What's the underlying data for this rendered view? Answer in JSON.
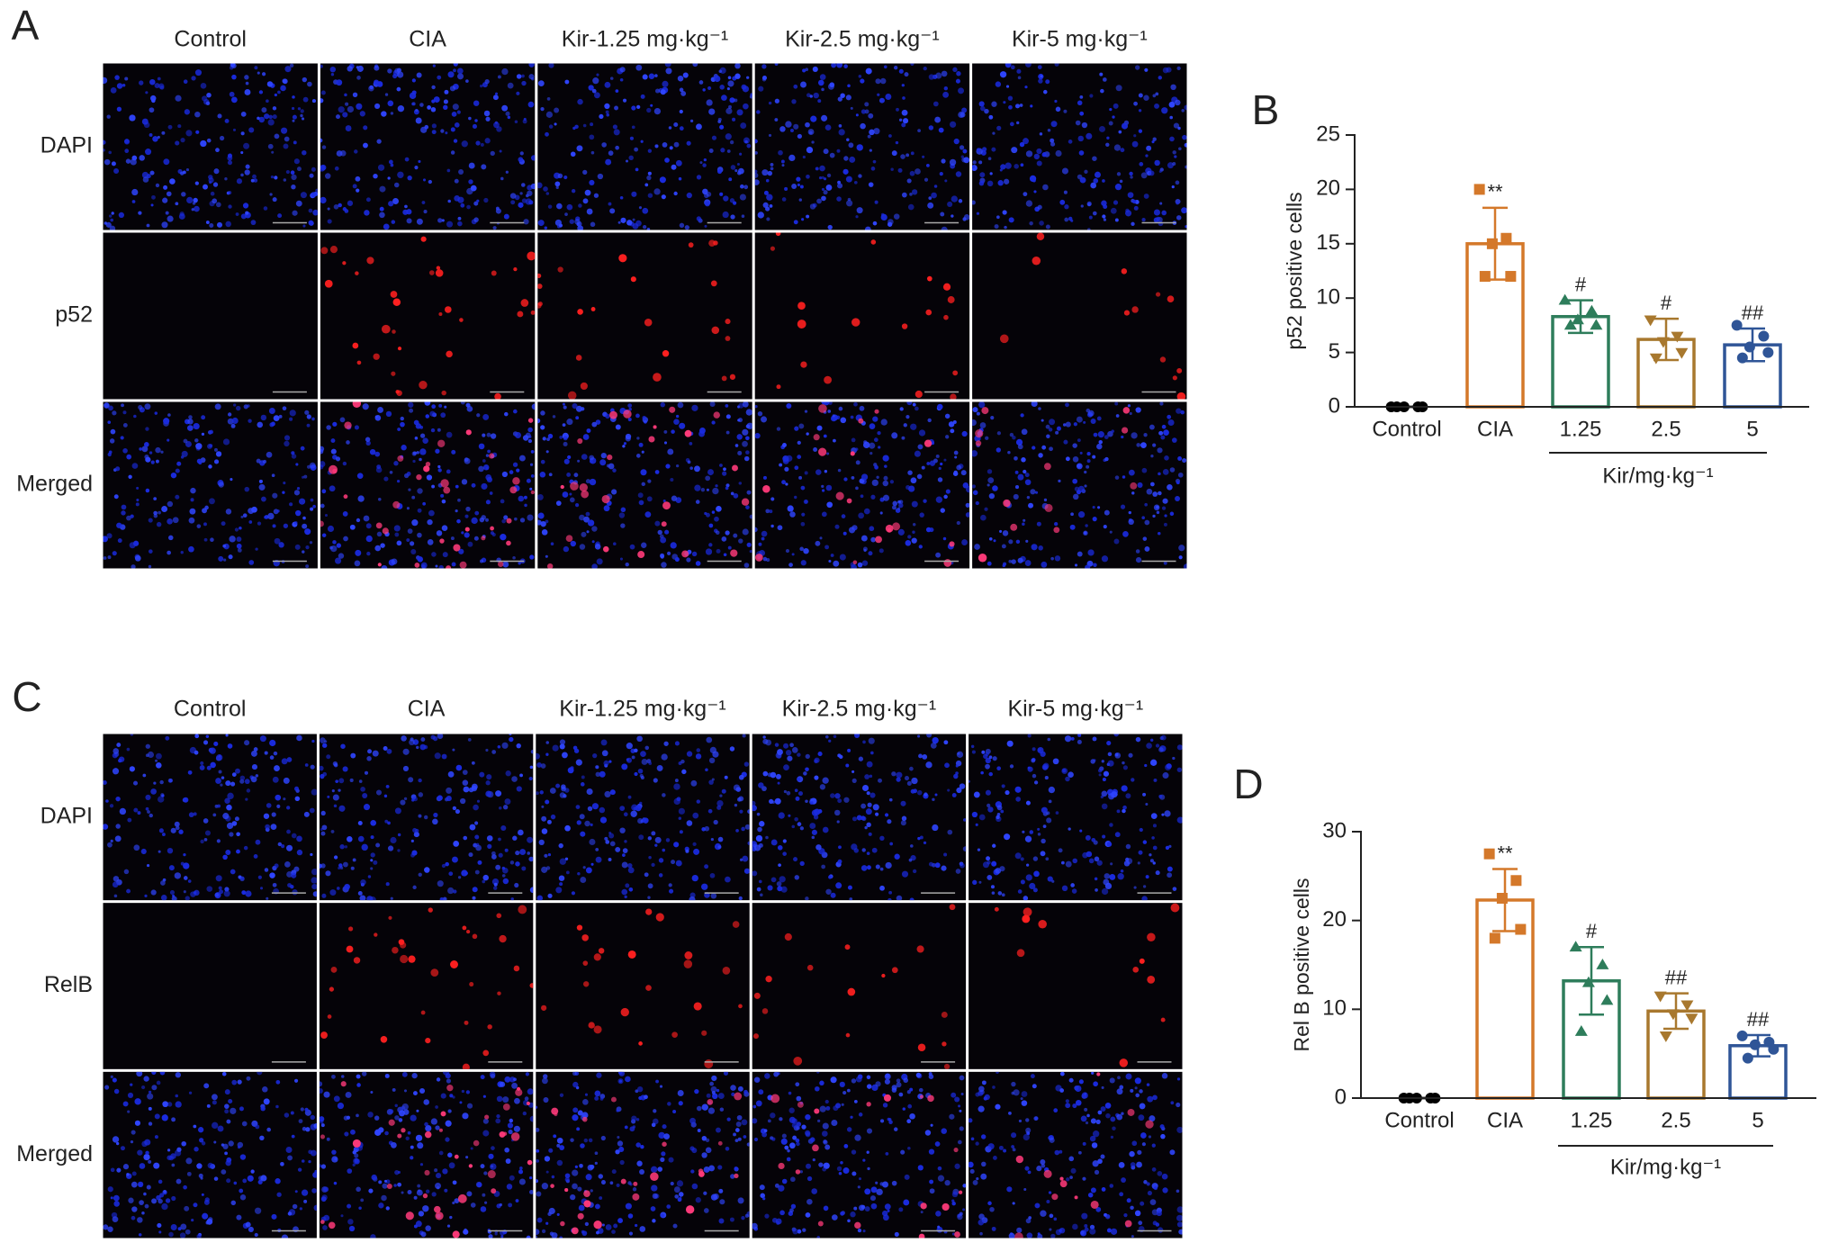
{
  "micrographs": [
    {
      "letter": "A",
      "columns": [
        "Control",
        "CIA",
        "Kir-1.25 mg·kg⁻¹",
        "Kir-2.5 mg·kg⁻¹",
        "Kir-5 mg·kg⁻¹"
      ],
      "rows": [
        "DAPI",
        "p52",
        "Merged"
      ]
    },
    {
      "letter": "C",
      "columns": [
        "Control",
        "CIA",
        "Kir-1.25 mg·kg⁻¹",
        "Kir-2.5 mg·kg⁻¹",
        "Kir-5 mg·kg⁻¹"
      ],
      "rows": [
        "DAPI",
        "RelB",
        "Merged"
      ]
    }
  ],
  "chart_data": [
    {
      "type": "bar",
      "panel_label": "B",
      "ylabel": "p52 positive cells",
      "group_label": "Kir/mg·kg⁻¹",
      "categories": [
        "Control",
        "CIA",
        "1.25",
        "2.5",
        "5"
      ],
      "values": [
        0,
        15,
        8.3,
        6.2,
        5.7
      ],
      "errors": [
        0,
        3.3,
        1.5,
        1.9,
        1.5
      ],
      "points": [
        [
          0,
          0,
          0,
          0,
          0
        ],
        [
          20,
          15.5,
          15,
          12,
          12
        ],
        [
          9.8,
          8.8,
          8,
          7.5,
          7.5
        ],
        [
          8,
          6.5,
          6,
          5,
          4.5
        ],
        [
          7.5,
          6.5,
          5.5,
          5,
          4.5
        ]
      ],
      "colors": [
        "#000000",
        "#d4782a",
        "#2e7d5b",
        "#a8782e",
        "#2f5597"
      ],
      "markers": [
        "circle",
        "square",
        "triangle",
        "triangle-down",
        "circle"
      ],
      "annotations": [
        null,
        "**",
        "#",
        "#",
        "##"
      ],
      "ylim": [
        0,
        25
      ],
      "yticks": [
        0,
        5,
        10,
        15,
        20,
        25
      ]
    },
    {
      "type": "bar",
      "panel_label": "D",
      "ylabel": "Rel B positive cells",
      "group_label": "Kir/mg·kg⁻¹",
      "categories": [
        "Control",
        "CIA",
        "1.25",
        "2.5",
        "5"
      ],
      "values": [
        0,
        22.3,
        13.2,
        9.8,
        5.9
      ],
      "errors": [
        0,
        3.5,
        3.8,
        2.0,
        1.2
      ],
      "points": [
        [
          0,
          0,
          0,
          0,
          0
        ],
        [
          27.5,
          24.5,
          22.5,
          19,
          18
        ],
        [
          17,
          15,
          13,
          11,
          7.5
        ],
        [
          11.5,
          10.5,
          9.5,
          9,
          7
        ],
        [
          7,
          6.3,
          6,
          5.5,
          4.5
        ]
      ],
      "colors": [
        "#000000",
        "#d4782a",
        "#2e7d5b",
        "#a8782e",
        "#2f5597"
      ],
      "markers": [
        "circle",
        "square",
        "triangle",
        "triangle-down",
        "circle"
      ],
      "annotations": [
        null,
        "**",
        "#",
        "##",
        "##"
      ],
      "ylim": [
        0,
        30
      ],
      "yticks": [
        0,
        10,
        20,
        30
      ]
    }
  ]
}
